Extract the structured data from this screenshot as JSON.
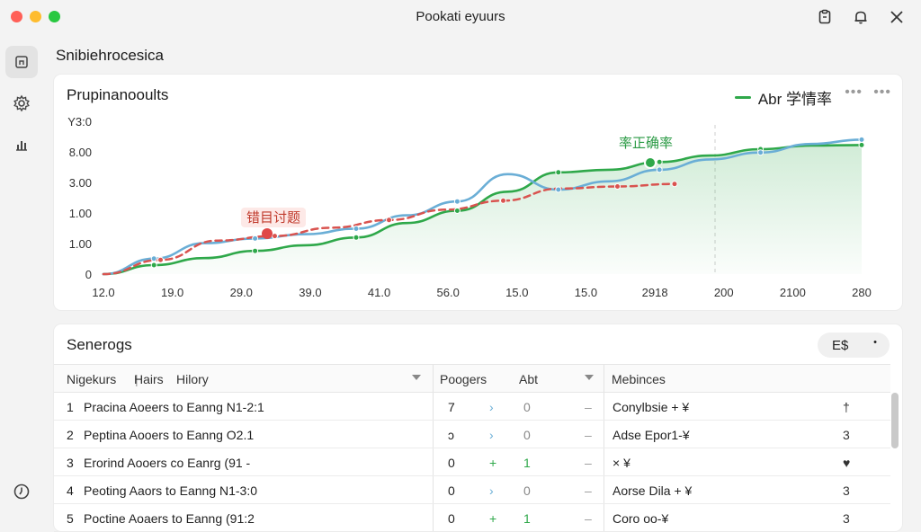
{
  "window": {
    "title": "Pookati eyuurs"
  },
  "page": {
    "heading": "Snibiehrocesica"
  },
  "chart_card": {
    "title": "Prupinanooults",
    "legend_label": "Abr 学情率",
    "more_label": "•••",
    "annotation_red": "错目讨题",
    "annotation_green": "率正确率"
  },
  "chart_data": {
    "type": "line",
    "x_tick_labels": [
      "12.0",
      "19.0",
      "29.0",
      "39.0",
      "41.0",
      "56.0",
      "15.0",
      "15.0",
      "2918",
      "200",
      "2100",
      "280"
    ],
    "y_tick_labels": [
      "Y3:0",
      "8.00",
      "3.00",
      "1.00",
      "1.00",
      "0"
    ],
    "series": [
      {
        "name": "Abr 学情率",
        "color": "#2fa84a",
        "values": [
          0.0,
          0.35,
          0.62,
          0.9,
          1.12,
          1.42,
          1.98,
          2.46,
          3.2,
          3.95,
          4.05,
          4.35,
          4.6,
          4.85,
          4.99,
          5.01
        ]
      },
      {
        "color": "#6aaed6",
        "values": [
          0.0,
          0.6,
          1.2,
          1.38,
          1.55,
          1.76,
          2.28,
          2.82,
          3.88,
          3.28,
          3.6,
          4.05,
          4.45,
          4.72,
          5.05,
          5.22
        ]
      },
      {
        "color": "#d9534f",
        "dashed": true,
        "values": [
          0.0,
          0.55,
          1.3,
          1.48,
          1.8,
          2.1,
          2.5,
          2.85,
          3.32,
          3.4,
          3.5
        ]
      }
    ],
    "ylim": [
      0,
      6
    ],
    "shaded_region": {
      "series": "Abr 学情率",
      "color": "#2fa84a"
    }
  },
  "table_card": {
    "title": "Senerogs",
    "filter_label": "E$",
    "filter_caret": "•",
    "headers": {
      "col1": "Nigekurs",
      "col2": "Hairs",
      "col3": "Hilory",
      "col4": "Poogers",
      "col5": "Abt",
      "col6": "Mebinces"
    },
    "rows": [
      {
        "num": "1",
        "name": "Pracina Aoeers to Eanng N1-2:1",
        "v1": "7",
        "sym": "›",
        "v2": "0",
        "dash": "–",
        "text": "Conylbsie + ¥",
        "end": "†"
      },
      {
        "num": "2",
        "name": "Peptina Aooers to Eanng O2.1",
        "v1": "ↄ",
        "sym": "›",
        "v2": "0",
        "dash": "–",
        "text": "Adse Epor1-¥",
        "end": "3"
      },
      {
        "num": "3",
        "name": "Erorind Aooers co Eanrg (91 -",
        "v1": "0",
        "sym": "+",
        "v2": "1",
        "dash": "–",
        "text": "× ¥",
        "end": "♥"
      },
      {
        "num": "4",
        "name": "Peoting Aaors to Eanng N1-3:0",
        "v1": "0",
        "sym": "›",
        "v2": "0",
        "dash": "–",
        "text": "Aorse Dila + ¥",
        "end": "3"
      },
      {
        "num": "5",
        "name": "Poctine Aoaers to Eanng (91:2",
        "v1": "0",
        "sym": "+",
        "v2": "1",
        "dash": "–",
        "text": "Coro oo-¥",
        "end": "3"
      }
    ]
  }
}
